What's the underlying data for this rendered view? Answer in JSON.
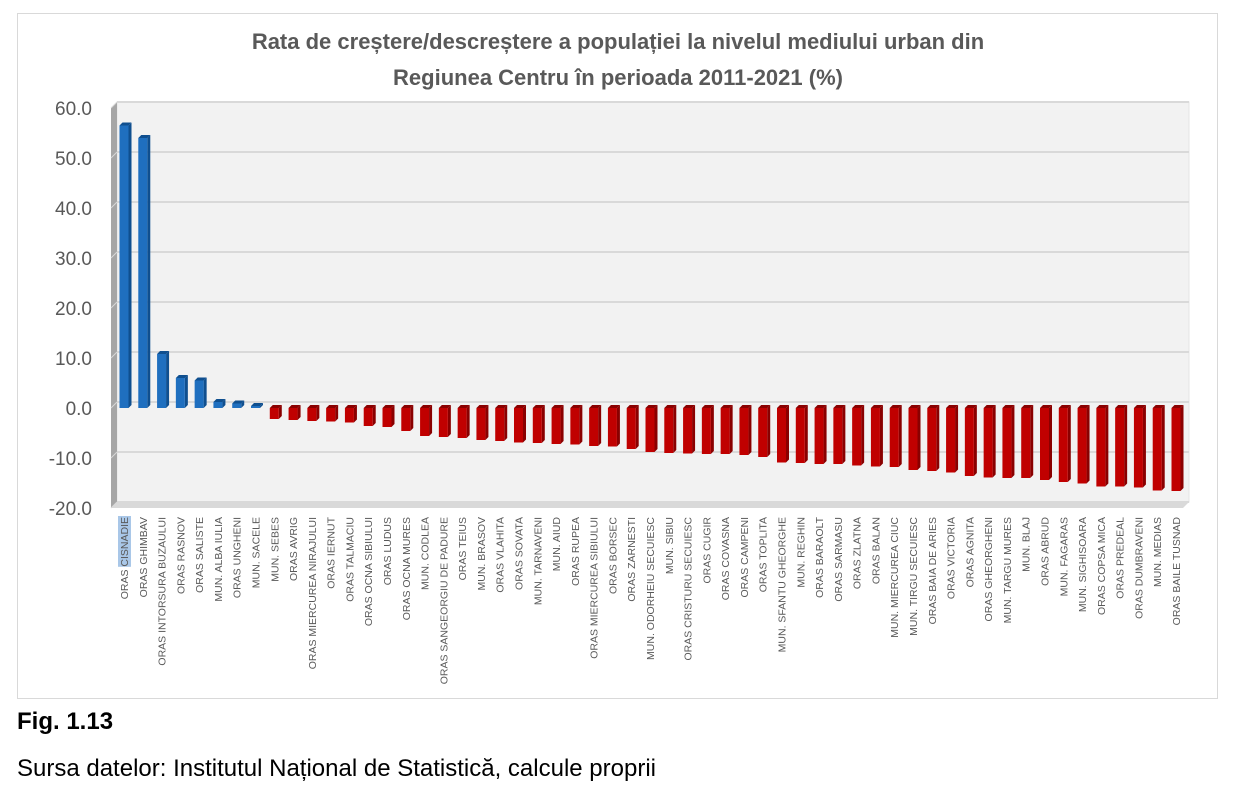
{
  "figure": {
    "label": "Fig. 1.13",
    "source": "Sursa datelor: Institutul Național de Statistică, calcule proprii"
  },
  "colors": {
    "positive": "#1f6fbf",
    "positive_dark": "#0f4f8f",
    "negative": "#c00000",
    "negative_dark": "#8a0000",
    "wall": "#f2f2f2",
    "grid": "#d9d9d9",
    "highlight": "#a9c7e8"
  },
  "chart_data": {
    "type": "bar",
    "title_line1": "Rata de creștere/descreștere a populației la nivelul mediului urban din",
    "title_line2": "Regiunea Centru în perioada 2011-2021 (%)",
    "xlabel": "",
    "ylabel": "",
    "ylim": [
      -20,
      60
    ],
    "yticks": [
      60,
      50,
      40,
      30,
      20,
      10,
      0,
      -10,
      -20
    ],
    "ytick_labels": [
      "60.0",
      "50.0",
      "40.0",
      "30.0",
      "20.0",
      "10.0",
      "0.0",
      "-10.0",
      "-20.0"
    ],
    "grid": true,
    "legend": "none",
    "highlighted_label_part": "CISNADIE",
    "categories": [
      "ORAS CISNADIE",
      "ORAS GHIMBAV",
      "ORAS INTORSURA BUZAULUI",
      "ORAS RASNOV",
      "ORAS SALISTE",
      "MUN. ALBA IULIA",
      "ORAS UNGHENI",
      "MUN. SACELE",
      "MUN. SEBES",
      "ORAS AVRIG",
      "ORAS MIERCUREA NIRAJULUI",
      "ORAS IERNUT",
      "ORAS TALMACIU",
      "ORAS OCNA SIBIULUI",
      "ORAS LUDUS",
      "ORAS OCNA MURES",
      "MUN. CODLEA",
      "ORAS SANGEORGIU DE PADURE",
      "ORAS TEIUS",
      "MUN. BRASOV",
      "ORAS VLAHITA",
      "ORAS SOVATA",
      "MUN. TARNAVENI",
      "MUN. AIUD",
      "ORAS RUPEA",
      "ORAS MIERCUREA SIBIULUI",
      "ORAS BORSEC",
      "ORAS ZARNESTI",
      "MUN. ODORHEIU SECUIESC",
      "MUN. SIBIU",
      "ORAS CRISTURU SECUIESC",
      "ORAS CUGIR",
      "ORAS COVASNA",
      "ORAS CAMPENI",
      "ORAS TOPLITA",
      "MUN. SFANTU GHEORGHE",
      "MUN. REGHIN",
      "ORAS BARAOLT",
      "ORAS SARMASU",
      "ORAS ZLATNA",
      "ORAS BALAN",
      "MUN. MIERCUREA CIUC",
      "MUN. TIRGU SECUIESC",
      "ORAS BAIA DE ARIES",
      "ORAS VICTORIA",
      "ORAS AGNITA",
      "ORAS GHEORGHENI",
      "MUN. TARGU MURES",
      "MUN. BLAJ",
      "ORAS ABRUD",
      "MUN. FAGARAS",
      "MUN. SIGHISOARA",
      "ORAS COPSA MICA",
      "ORAS PREDEAL",
      "ORAS DUMBRAVENI",
      "MUN. MEDIAS",
      "ORAS BAILE TUSNAD"
    ],
    "values": [
      56.5,
      54.0,
      10.8,
      6.0,
      5.5,
      1.2,
      0.9,
      0.4,
      -2.2,
      -2.4,
      -2.6,
      -2.7,
      -2.9,
      -3.6,
      -3.8,
      -4.6,
      -5.6,
      -5.8,
      -6.0,
      -6.4,
      -6.6,
      -6.9,
      -7.0,
      -7.2,
      -7.3,
      -7.6,
      -7.7,
      -8.2,
      -8.8,
      -9.0,
      -9.1,
      -9.2,
      -9.2,
      -9.4,
      -9.8,
      -10.9,
      -11.0,
      -11.2,
      -11.2,
      -11.5,
      -11.7,
      -11.8,
      -12.4,
      -12.6,
      -12.9,
      -13.6,
      -13.9,
      -14.0,
      -14.0,
      -14.4,
      -14.8,
      -15.1,
      -15.7,
      -15.7,
      -15.9,
      -16.5,
      -16.6
    ]
  }
}
